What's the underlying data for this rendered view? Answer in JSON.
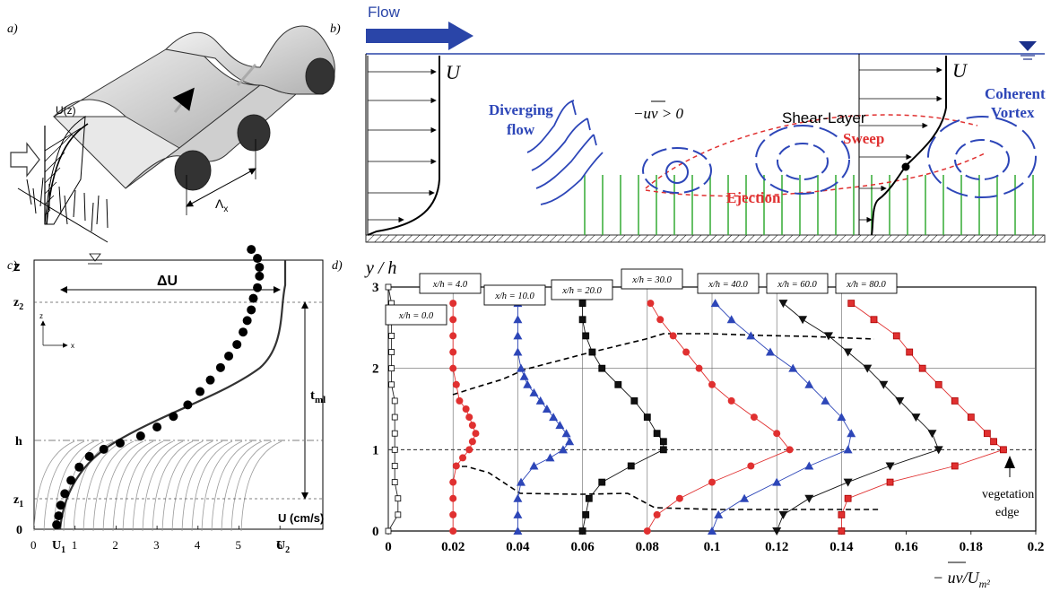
{
  "panels": {
    "a": {
      "label": "a)",
      "velocity_label": "U(z)",
      "wavelength_label": "Λ",
      "wavelength_sub": "x"
    },
    "b": {
      "label": "b)",
      "flow_label": "Flow",
      "u_left": "U",
      "u_right": "U",
      "diverging_line1": "Diverging",
      "diverging_line2": "flow",
      "coherent_line1": "Coherent",
      "coherent_line2": "Vortex",
      "stress_label": "−uv > 0",
      "shear_layer_label": "Shear-Layer",
      "sweep_label": "Sweep",
      "ejection_label": "Ejection",
      "colors": {
        "flow_arrow": "#2a45a8",
        "vortex": "#2d46b8",
        "annotation_red": "#e03030",
        "vegetation": "#33aa33"
      }
    },
    "c": {
      "label": "c)",
      "z_label": "z",
      "delta_u": "ΔU",
      "z2": "z",
      "z2_sub": "2",
      "h": "h",
      "z1": "z",
      "z1_sub": "1",
      "zero": "0",
      "tml": "t",
      "tml_sub": "ml",
      "axis_z": "z",
      "axis_x": "x",
      "u_unit": "U (cm/s)",
      "x_ticks": [
        "0",
        "1",
        "2",
        "3",
        "4",
        "5",
        "6"
      ],
      "u1": "U",
      "u1_sub": "1",
      "u2": "U",
      "u2_sub": "2"
    },
    "d": {
      "label": "d)",
      "ylabel": "y / h",
      "xlabel": "− uv/U",
      "xlabel_sub": "m²",
      "y_ticks": [
        "0",
        "1",
        "2",
        "3"
      ],
      "x_ticks": [
        "0",
        "0.02",
        "0.04",
        "0.06",
        "0.08",
        "0.1",
        "0.12",
        "0.14",
        "0.16",
        "0.18",
        "0.2"
      ],
      "station_boxes": [
        "x/h = 0.0",
        "x/h = 4.0",
        "x/h = 10.0",
        "x/h = 20.0",
        "x/h = 30.0",
        "x/h = 40.0",
        "x/h = 60.0",
        "x/h = 80.0"
      ],
      "vegetation_line1": "vegetation",
      "vegetation_line2": "edge"
    }
  },
  "chart_data": [
    {
      "panel": "c",
      "type": "scatter",
      "xlabel": "U (cm/s)",
      "ylabel": "z",
      "xlim": [
        0,
        6.3
      ],
      "ylim": [
        0,
        3
      ],
      "note": "y values expressed relative to canopy height h=1",
      "series": [
        {
          "x": [
            0.55,
            0.6,
            0.65,
            0.75,
            0.9,
            1.1,
            1.35,
            1.7,
            2.1,
            2.6,
            3.0,
            3.4,
            3.75,
            4.05,
            4.3,
            4.55,
            4.75,
            4.95,
            5.1,
            5.2,
            5.3,
            5.35,
            5.45,
            5.5,
            5.5,
            5.45,
            5.3
          ],
          "y": [
            0.05,
            0.15,
            0.27,
            0.4,
            0.55,
            0.7,
            0.82,
            0.9,
            0.97,
            1.05,
            1.15,
            1.27,
            1.4,
            1.55,
            1.68,
            1.82,
            1.95,
            2.08,
            2.22,
            2.35,
            2.47,
            2.6,
            2.72,
            2.85,
            2.95,
            3.05,
            3.15
          ]
        }
      ]
    },
    {
      "panel": "d",
      "type": "line",
      "xlabel": "−uv/Um²",
      "ylabel": "y/h",
      "xlim": [
        0,
        0.2
      ],
      "ylim": [
        0,
        3
      ],
      "series": [
        {
          "name": "x/h = 0.0",
          "offset": 0.0,
          "color": "#222222",
          "marker": "square-open",
          "y": [
            0.0,
            0.2,
            0.4,
            0.6,
            0.8,
            1.0,
            1.2,
            1.4,
            1.6,
            1.8,
            2.0,
            2.2,
            2.4,
            2.6,
            2.8,
            3.0
          ],
          "x": [
            0.0,
            0.003,
            0.003,
            0.002,
            0.002,
            0.002,
            0.002,
            0.002,
            0.002,
            0.001,
            0.001,
            0.001,
            0.001,
            0.001,
            0.001,
            0.0
          ]
        },
        {
          "name": "x/h = 4.0",
          "offset": 0.02,
          "color": "#e03030",
          "marker": "circle",
          "y": [
            0.0,
            0.2,
            0.4,
            0.6,
            0.8,
            0.9,
            1.0,
            1.1,
            1.2,
            1.3,
            1.4,
            1.5,
            1.6,
            1.8,
            2.0,
            2.2,
            2.4,
            2.6,
            2.8
          ],
          "x": [
            0.02,
            0.02,
            0.02,
            0.02,
            0.021,
            0.023,
            0.025,
            0.026,
            0.027,
            0.026,
            0.025,
            0.024,
            0.022,
            0.021,
            0.02,
            0.02,
            0.02,
            0.02,
            0.02
          ]
        },
        {
          "name": "x/h = 10.0",
          "offset": 0.04,
          "color": "#2d46b8",
          "marker": "triangle-up",
          "y": [
            0.0,
            0.2,
            0.4,
            0.6,
            0.8,
            0.9,
            1.0,
            1.1,
            1.2,
            1.3,
            1.4,
            1.5,
            1.6,
            1.7,
            1.8,
            1.9,
            2.0,
            2.2,
            2.4,
            2.6,
            2.8
          ],
          "x": [
            0.04,
            0.04,
            0.04,
            0.041,
            0.045,
            0.05,
            0.054,
            0.056,
            0.055,
            0.053,
            0.051,
            0.049,
            0.047,
            0.045,
            0.043,
            0.042,
            0.041,
            0.04,
            0.04,
            0.04,
            0.04
          ]
        },
        {
          "name": "x/h = 20.0",
          "offset": 0.06,
          "color": "#111111",
          "marker": "square",
          "y": [
            0.0,
            0.2,
            0.4,
            0.6,
            0.8,
            1.0,
            1.1,
            1.2,
            1.4,
            1.6,
            1.8,
            2.0,
            2.2,
            2.4,
            2.6,
            2.8
          ],
          "x": [
            0.06,
            0.061,
            0.062,
            0.066,
            0.075,
            0.085,
            0.085,
            0.083,
            0.08,
            0.076,
            0.071,
            0.066,
            0.063,
            0.061,
            0.06,
            0.06
          ]
        },
        {
          "name": "x/h = 30.0",
          "offset": 0.08,
          "color": "#e03030",
          "marker": "circle",
          "y": [
            0.0,
            0.2,
            0.4,
            0.6,
            0.8,
            1.0,
            1.2,
            1.4,
            1.6,
            1.8,
            2.0,
            2.2,
            2.4,
            2.6,
            2.8
          ],
          "x": [
            0.08,
            0.083,
            0.09,
            0.1,
            0.112,
            0.124,
            0.12,
            0.113,
            0.106,
            0.1,
            0.096,
            0.092,
            0.088,
            0.084,
            0.081
          ]
        },
        {
          "name": "x/h = 40.0",
          "offset": 0.1,
          "color": "#2d46b8",
          "marker": "triangle-up",
          "y": [
            0.0,
            0.2,
            0.4,
            0.6,
            0.8,
            1.0,
            1.2,
            1.4,
            1.6,
            1.8,
            2.0,
            2.2,
            2.4,
            2.6,
            2.8
          ],
          "x": [
            0.1,
            0.102,
            0.11,
            0.12,
            0.13,
            0.142,
            0.143,
            0.14,
            0.135,
            0.13,
            0.125,
            0.118,
            0.112,
            0.106,
            0.101
          ]
        },
        {
          "name": "x/h = 60.0",
          "offset": 0.12,
          "color": "#111111",
          "marker": "triangle-down",
          "y": [
            0.0,
            0.2,
            0.4,
            0.6,
            0.8,
            1.0,
            1.2,
            1.4,
            1.6,
            1.8,
            2.0,
            2.2,
            2.4,
            2.6,
            2.8
          ],
          "x": [
            0.12,
            0.122,
            0.13,
            0.142,
            0.155,
            0.17,
            0.168,
            0.163,
            0.158,
            0.153,
            0.148,
            0.142,
            0.136,
            0.128,
            0.122
          ]
        },
        {
          "name": "x/h = 80.0",
          "offset": 0.14,
          "color": "#e03030",
          "marker": "square",
          "y": [
            0.0,
            0.2,
            0.4,
            0.6,
            0.8,
            1.0,
            1.1,
            1.2,
            1.4,
            1.6,
            1.8,
            2.0,
            2.2,
            2.4,
            2.6,
            2.8
          ],
          "x": [
            0.14,
            0.14,
            0.142,
            0.155,
            0.175,
            0.19,
            0.187,
            0.185,
            0.18,
            0.175,
            0.17,
            0.165,
            0.161,
            0.157,
            0.15,
            0.143
          ]
        }
      ]
    }
  ]
}
